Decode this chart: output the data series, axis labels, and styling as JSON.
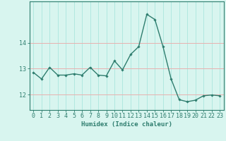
{
  "x": [
    0,
    1,
    2,
    3,
    4,
    5,
    6,
    7,
    8,
    9,
    10,
    11,
    12,
    13,
    14,
    15,
    16,
    17,
    18,
    19,
    20,
    21,
    22,
    23
  ],
  "y": [
    12.85,
    12.6,
    13.05,
    12.75,
    12.75,
    12.8,
    12.75,
    13.05,
    12.75,
    12.72,
    13.3,
    12.95,
    13.55,
    13.85,
    15.1,
    14.9,
    13.85,
    12.6,
    11.8,
    11.72,
    11.78,
    11.95,
    11.98,
    11.95
  ],
  "line_color": "#2e7d6e",
  "marker": "D",
  "marker_size": 1.8,
  "line_width": 1.0,
  "bg_color": "#d8f5ef",
  "grid_v_color": "#b0e8e0",
  "grid_h_color": "#e8b0b0",
  "xlabel": "Humidex (Indice chaleur)",
  "ylim": [
    11.4,
    15.6
  ],
  "yticks": [
    12,
    13,
    14
  ],
  "xticks": [
    0,
    1,
    2,
    3,
    4,
    5,
    6,
    7,
    8,
    9,
    10,
    11,
    12,
    13,
    14,
    15,
    16,
    17,
    18,
    19,
    20,
    21,
    22,
    23
  ],
  "xlabel_fontsize": 6.5,
  "tick_fontsize": 6.0
}
